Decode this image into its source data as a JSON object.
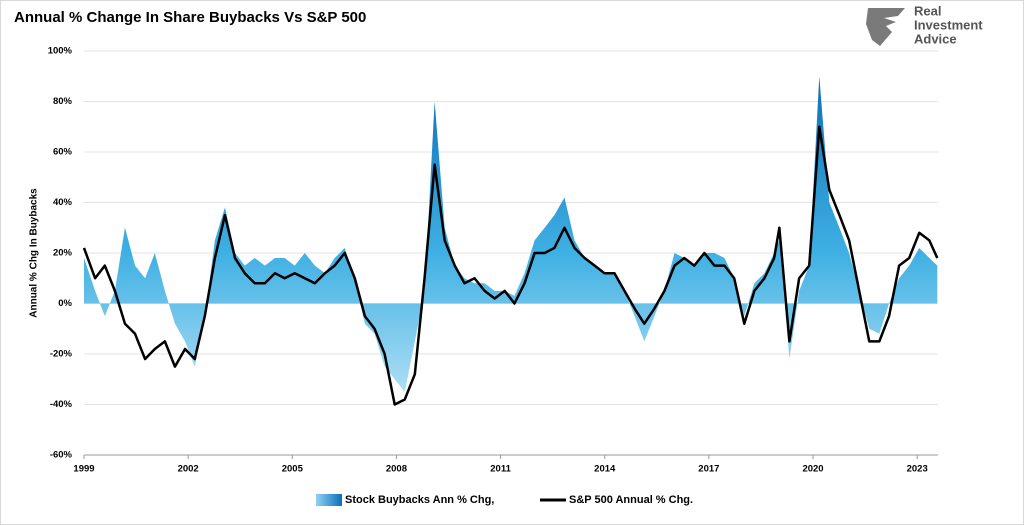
{
  "chart_data": {
    "type": "area-line",
    "title": "Annual % Change In Share Buybacks Vs S&P 500",
    "y_label": "Annual % Chg In Buybacks",
    "logo": [
      "Real",
      "Investment",
      "Advice"
    ],
    "x": [
      1999.0,
      1999.32,
      1999.6,
      1999.89,
      2000.18,
      2000.47,
      2000.76,
      2001.04,
      2001.33,
      2001.62,
      2001.91,
      2002.19,
      2002.48,
      2002.77,
      2003.06,
      2003.35,
      2003.63,
      2003.92,
      2004.21,
      2004.5,
      2004.78,
      2005.07,
      2005.36,
      2005.65,
      2005.94,
      2006.22,
      2006.51,
      2006.8,
      2007.09,
      2007.37,
      2007.66,
      2007.95,
      2008.24,
      2008.53,
      2008.81,
      2009.1,
      2009.39,
      2009.68,
      2009.96,
      2010.25,
      2010.54,
      2010.83,
      2011.12,
      2011.4,
      2011.69,
      2011.98,
      2012.27,
      2012.55,
      2012.84,
      2013.13,
      2013.42,
      2013.71,
      2013.99,
      2014.28,
      2014.57,
      2014.86,
      2015.14,
      2015.43,
      2015.72,
      2016.01,
      2016.29,
      2016.58,
      2016.87,
      2017.16,
      2017.45,
      2017.73,
      2018.02,
      2018.31,
      2018.6,
      2018.88,
      2019.03,
      2019.32,
      2019.6,
      2019.89,
      2020.18,
      2020.47,
      2020.76,
      2021.04,
      2021.33,
      2021.62,
      2021.91,
      2022.19,
      2022.48,
      2022.77,
      2023.06,
      2023.35,
      2023.58
    ],
    "series": [
      {
        "name": "Stock Buybacks Ann % Chg,",
        "type": "area",
        "color": "#0a78c2",
        "values": [
          18,
          5,
          -5,
          5,
          30,
          15,
          10,
          20,
          5,
          -8,
          -15,
          -25,
          -5,
          25,
          38,
          20,
          15,
          18,
          15,
          18,
          18,
          15,
          20,
          15,
          12,
          18,
          22,
          10,
          -8,
          -12,
          -25,
          -30,
          -35,
          -15,
          5,
          80,
          30,
          15,
          10,
          8,
          8,
          5,
          5,
          3,
          12,
          25,
          30,
          35,
          42,
          25,
          18,
          15,
          12,
          12,
          5,
          -5,
          -15,
          -5,
          5,
          20,
          18,
          15,
          20,
          20,
          18,
          10,
          -5,
          8,
          12,
          20,
          25,
          -22,
          5,
          15,
          90,
          40,
          30,
          20,
          5,
          -10,
          -12,
          0,
          10,
          15,
          22,
          18,
          15
        ]
      },
      {
        "name": "S&P 500 Annual % Chg.",
        "type": "line",
        "color": "#000000",
        "values": [
          22,
          10,
          15,
          5,
          -8,
          -12,
          -22,
          -18,
          -15,
          -25,
          -18,
          -22,
          -5,
          18,
          35,
          18,
          12,
          8,
          8,
          12,
          10,
          12,
          10,
          8,
          12,
          15,
          20,
          10,
          -5,
          -10,
          -20,
          -40,
          -38,
          -28,
          10,
          55,
          25,
          15,
          8,
          10,
          5,
          2,
          5,
          0,
          8,
          20,
          20,
          22,
          30,
          22,
          18,
          15,
          12,
          12,
          5,
          -2,
          -8,
          -2,
          5,
          15,
          18,
          15,
          20,
          15,
          15,
          10,
          -8,
          5,
          10,
          18,
          30,
          -15,
          10,
          15,
          70,
          45,
          35,
          25,
          5,
          -15,
          -15,
          -5,
          15,
          18,
          28,
          25,
          18
        ]
      }
    ],
    "xlim": [
      1999,
      2023.6
    ],
    "xticks": [
      1999,
      2002,
      2005,
      2008,
      2011,
      2014,
      2017,
      2020,
      2023
    ],
    "ylim": [
      -60,
      100
    ],
    "yticks": [
      {
        "value": -60,
        "label": "-60%"
      },
      {
        "value": -40,
        "label": "-40%"
      },
      {
        "value": -20,
        "label": "-20%"
      },
      {
        "value": 0,
        "label": "0%"
      },
      {
        "value": 20,
        "label": "20%"
      },
      {
        "value": 40,
        "label": "40%"
      },
      {
        "value": 60,
        "label": "60%"
      },
      {
        "value": 80,
        "label": "80%"
      },
      {
        "value": 100,
        "label": "100%"
      }
    ],
    "grid": true
  }
}
